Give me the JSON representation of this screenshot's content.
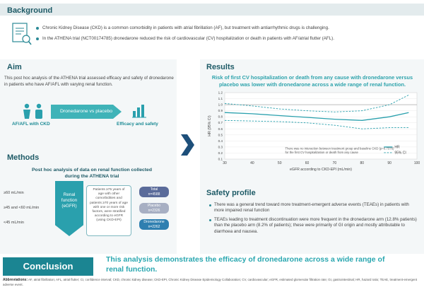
{
  "background": {
    "title": "Background",
    "line1": "Chronic Kidney Disease (CKD) is a common comorbidity in patients with atrial fibrillation (AF), but treatment with antiarrhythmic drugs is challenging.",
    "line2": "In the ATHENA trial (NCT00174785) dronedarone reduced the risk of cardiovascular (CV) hospitalization or death in patients with AF/atrial flutter (AFL)."
  },
  "aim": {
    "title": "Aim",
    "text": "This post hoc analysis of the ATHENA trial assessed efficacy and safety of dronedarone in patients who have AF/AFL with varying renal function.",
    "left_label": "AF/AFL with CKD",
    "arrow_label": "Dronedarone vs placebo",
    "right_label": "Efficacy and safety"
  },
  "methods": {
    "title": "Methods",
    "subtitle": "Post hoc analysis of data on renal function collected during the ATHENA trial",
    "labels": [
      "≥60 mL/min",
      "≥45 and <60 mL/min",
      "<45 mL/min"
    ],
    "renal_label": "Renal function (eGFR)",
    "patient_box": "Patients ≥75 years of age with other comorbidities and patients ≥70 years of age with one or more risk factors, were stratified according to eGFR (using CKD-EPI)",
    "pills": [
      {
        "label": "Total",
        "value": "n=4588"
      },
      {
        "label": "Placebo",
        "value": "n=2326"
      },
      {
        "label": "Dronedarone",
        "value": "n=2262"
      }
    ]
  },
  "results": {
    "title": "Results",
    "heading": "Risk of first CV hospitalization or death from any cause with dronedarone versus placebo was lower with dronedarone across a wide range of renal function."
  },
  "chart_data": {
    "type": "line",
    "title": "",
    "xlabel": "eGFR according to CKD-EPI (mL/min)",
    "ylabel": "HR (95% CI)",
    "xlim": [
      30,
      100
    ],
    "ylim": [
      0.1,
      1.2
    ],
    "x_ticks": [
      30,
      40,
      50,
      60,
      70,
      80,
      90,
      100
    ],
    "y_ticks": [
      0.1,
      0.2,
      0.3,
      0.4,
      0.5,
      0.6,
      0.7,
      0.8,
      0.9,
      1.0,
      1.1,
      1.2
    ],
    "reference_line": 1.0,
    "series": [
      {
        "name": "HR",
        "style": "solid",
        "x": [
          30,
          40,
          50,
          60,
          70,
          80,
          90,
          97
        ],
        "values": [
          0.87,
          0.85,
          0.82,
          0.79,
          0.76,
          0.74,
          0.8,
          0.87
        ]
      },
      {
        "name": "95% CI",
        "style": "dashed-upper",
        "x": [
          30,
          40,
          50,
          60,
          70,
          80,
          90,
          97
        ],
        "values": [
          1.02,
          0.98,
          0.93,
          0.9,
          0.88,
          0.9,
          1.0,
          1.16
        ]
      },
      {
        "name": "95% CI",
        "style": "dashed-lower",
        "x": [
          30,
          40,
          50,
          60,
          70,
          80,
          90,
          97
        ],
        "values": [
          0.74,
          0.73,
          0.72,
          0.7,
          0.66,
          0.6,
          0.62,
          0.62
        ]
      }
    ],
    "annotation": "There was no interaction between treatment group and baseline CKD (p=0.7376) for the first CV hospitalization or death from any cause",
    "legend": [
      "HR",
      "95% CI"
    ],
    "legend_position": "bottom-right"
  },
  "safety": {
    "title": "Safety profile",
    "bullet1": "There was a general trend toward more treatment-emergent adverse events (TEAEs) in patients with more impaired renal function",
    "bullet2": "TEAEs leading to treatment discontinuation were more frequent in the dronedarone arm (12.8% patients) than the placebo arm (8.2% of patients); these were primarily of GI origin and mostly attributable to diarrhoea and nausea."
  },
  "conclusion": {
    "label": "Conclusion",
    "text": "This analysis demonstrates the efficacy of dronedarone across a wide range of renal function."
  },
  "abbreviations": {
    "label": "Abbreviations:",
    "text": "AF, atrial fibrillation; AFL, atrial flutter; CI, confidence interval; CKD, chronic kidney disease; CKD-EPI, Chronic Kidney Disease Epidemiology Collaboration; CV, cardiovascular; eGFR, estimated glomerular filtration rate; GI, gastrointestinal; HR, hazard ratio; TEAE, treatment-emergent adverse event."
  }
}
